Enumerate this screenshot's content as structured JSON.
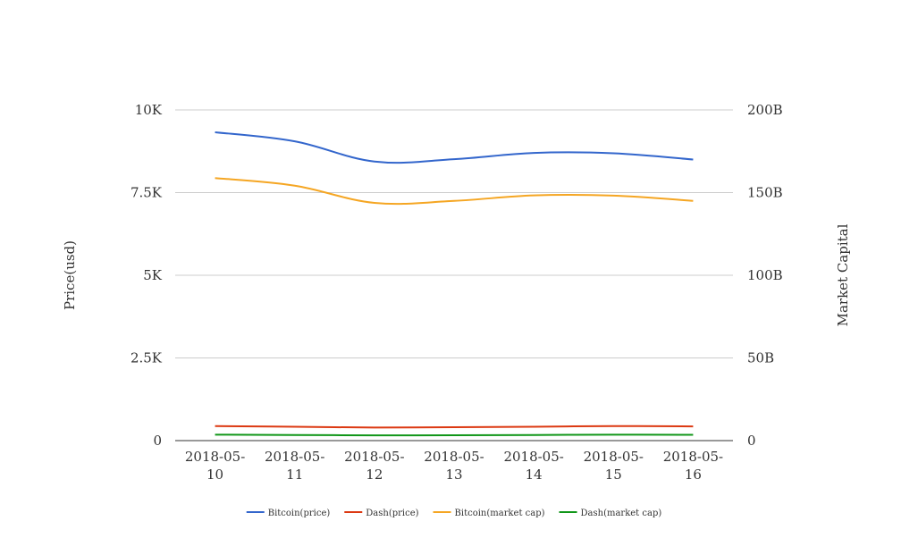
{
  "chart_data": {
    "type": "line",
    "categories": [
      "2018-05-10",
      "2018-05-11",
      "2018-05-12",
      "2018-05-13",
      "2018-05-14",
      "2018-05-15",
      "2018-05-16"
    ],
    "category_label_lines": [
      [
        "2018-05-",
        "10"
      ],
      [
        "2018-05-",
        "11"
      ],
      [
        "2018-05-",
        "12"
      ],
      [
        "2018-05-",
        "13"
      ],
      [
        "2018-05-",
        "14"
      ],
      [
        "2018-05-",
        "15"
      ],
      [
        "2018-05-",
        "16"
      ]
    ],
    "y_left": {
      "label": "Price(usd)",
      "range": [
        0,
        10000
      ],
      "ticks": [
        0,
        2500,
        5000,
        7500,
        10000
      ],
      "tick_labels": [
        "0",
        "2.5K",
        "5K",
        "7.5K",
        "10K"
      ]
    },
    "y_right": {
      "label": "Market Capital",
      "range": [
        0,
        200000000000
      ],
      "ticks": [
        0,
        50000000000,
        100000000000,
        150000000000,
        200000000000
      ],
      "tick_labels": [
        "0",
        "50B",
        "100B",
        "150B",
        "200B"
      ]
    },
    "series": [
      {
        "name": "Bitcoin(price)",
        "axis": "left",
        "color": "#3366cc",
        "values": [
          9325,
          9050,
          8440,
          8510,
          8700,
          8690,
          8500
        ]
      },
      {
        "name": "Dash(price)",
        "axis": "left",
        "color": "#dc3912",
        "values": [
          440,
          420,
          395,
          405,
          420,
          440,
          430
        ]
      },
      {
        "name": "Bitcoin(market cap)",
        "axis": "right",
        "color": "#f5a623",
        "values": [
          158800000000,
          154200000000,
          143800000000,
          145000000000,
          148300000000,
          148200000000,
          145000000000
        ]
      },
      {
        "name": "Dash(market cap)",
        "axis": "right",
        "color": "#109618",
        "values": [
          3600000000,
          3400000000,
          3200000000,
          3250000000,
          3400000000,
          3600000000,
          3500000000
        ]
      }
    ],
    "grid": true,
    "legend_position": "bottom"
  }
}
